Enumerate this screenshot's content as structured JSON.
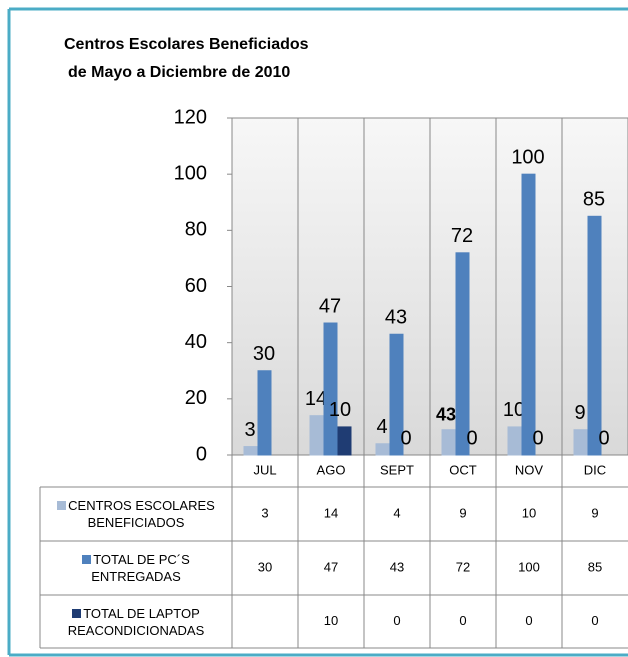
{
  "chart_data": {
    "type": "bar",
    "title": [
      "Centros Escolares Beneficiados",
      "de Mayo a Diciembre de 2010"
    ],
    "categories": [
      "JUL",
      "AGO",
      "SEPT",
      "OCT",
      "NOV",
      "DIC"
    ],
    "series": [
      {
        "name": "CENTROS ESCOLARES BENEFICIADOS",
        "color": "#a7bbd6",
        "values": [
          3,
          14,
          4,
          9,
          10,
          9
        ]
      },
      {
        "name": "TOTAL DE PC´S ENTREGADAS",
        "color": "#4f81bd",
        "values": [
          30,
          47,
          43,
          72,
          100,
          85
        ]
      },
      {
        "name": "TOTAL DE LAPTOP REACONDICIONADAS",
        "color": "#1f3c73",
        "values": [
          null,
          10,
          0,
          0,
          0,
          0
        ]
      }
    ],
    "annotation": "43",
    "ylim": [
      0,
      120
    ],
    "yticks": [
      0,
      20,
      40,
      60,
      80,
      100,
      120
    ],
    "grid": false
  }
}
